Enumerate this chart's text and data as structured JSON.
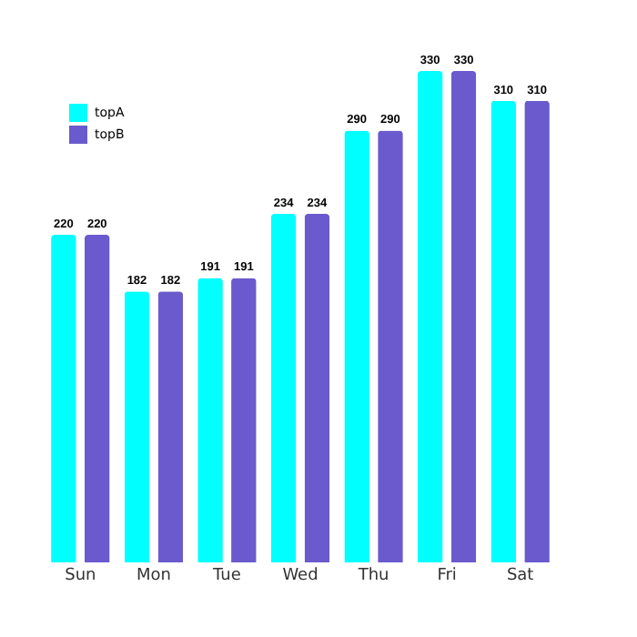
{
  "chart_data": {
    "type": "bar",
    "categories": [
      "Sun",
      "Mon",
      "Tue",
      "Wed",
      "Thu",
      "Fri",
      "Sat"
    ],
    "series": [
      {
        "name": "topA",
        "color": "#00ffff",
        "values": [
          220,
          182,
          191,
          234,
          290,
          330,
          310
        ]
      },
      {
        "name": "topB",
        "color": "#6a5acd",
        "values": [
          220,
          182,
          191,
          234,
          290,
          330,
          310
        ]
      }
    ],
    "data_labels": true,
    "legend": "top left",
    "grid": false
  }
}
